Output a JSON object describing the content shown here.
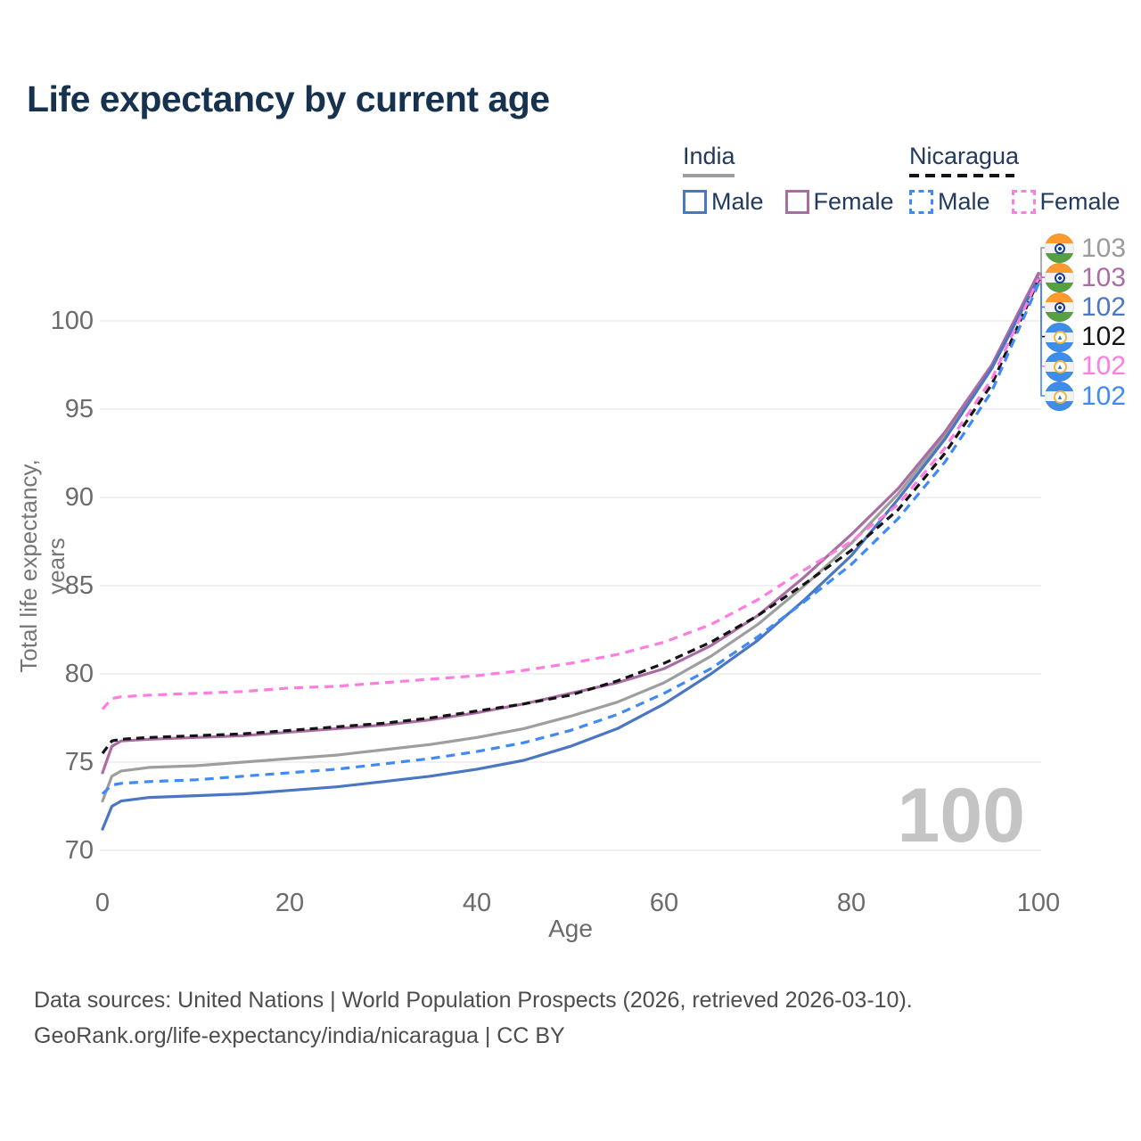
{
  "title": "Life expectancy by current age",
  "legend": {
    "groups": [
      {
        "label": "India",
        "line_style": "solid",
        "line_color": "#9e9e9e",
        "items": [
          {
            "label": "Male",
            "color": "#4a76c2",
            "dashed": false
          },
          {
            "label": "Female",
            "color": "#aa6da3",
            "dashed": false
          }
        ]
      },
      {
        "label": "Nicaragua",
        "line_style": "dashed",
        "line_color": "#141414",
        "items": [
          {
            "label": "Male",
            "color": "#3f8af5",
            "dashed": true
          },
          {
            "label": "Female",
            "color": "#ff7ce0",
            "dashed": true
          }
        ]
      }
    ]
  },
  "end_labels": [
    {
      "country": "India",
      "series": "India",
      "value": "103",
      "color": "#9a9a9a"
    },
    {
      "country": "India",
      "series": "India Female",
      "value": "103",
      "color": "#aa6da3"
    },
    {
      "country": "India",
      "series": "India Male",
      "value": "102",
      "color": "#4a76c2"
    },
    {
      "country": "Nicaragua",
      "series": "Nicaragua",
      "value": "102",
      "color": "#141414"
    },
    {
      "country": "Nicaragua",
      "series": "Nicaragua Female",
      "value": "102",
      "color": "#ff7ce0"
    },
    {
      "country": "Nicaragua",
      "series": "Nicaragua Male",
      "value": "102",
      "color": "#3f8af5"
    }
  ],
  "watermark": "100",
  "footer": {
    "line1": "Data sources: United Nations | World Population Prospects (2026, retrieved 2026-03-10).",
    "line2": "GeoRank.org/life-expectancy/india/nicaragua | CC BY"
  },
  "chart_data": {
    "type": "line",
    "title": "Life expectancy by current age",
    "xlabel": "Age",
    "ylabel": "Total life expectancy, years",
    "xlim": [
      0,
      100
    ],
    "ylim": [
      70,
      100
    ],
    "xticks": [
      0,
      20,
      40,
      60,
      80,
      100
    ],
    "yticks": [
      70,
      75,
      80,
      85,
      90,
      95,
      100
    ],
    "grid": "horizontal",
    "legend_position": "top-right",
    "x": [
      0,
      1,
      2,
      5,
      10,
      15,
      20,
      25,
      30,
      35,
      40,
      45,
      50,
      55,
      60,
      65,
      70,
      75,
      80,
      85,
      90,
      95,
      100
    ],
    "series": [
      {
        "name": "India",
        "color": "#9e9e9e",
        "dash": null,
        "values": [
          72.8,
          74.2,
          74.5,
          74.7,
          74.8,
          75.0,
          75.2,
          75.4,
          75.7,
          76.0,
          76.4,
          76.9,
          77.6,
          78.4,
          79.5,
          81.0,
          82.8,
          85.0,
          87.4,
          90.2,
          93.5,
          97.4,
          102.6
        ]
      },
      {
        "name": "India Female",
        "color": "#aa6da3",
        "dash": null,
        "values": [
          74.4,
          75.9,
          76.2,
          76.3,
          76.4,
          76.5,
          76.7,
          76.9,
          77.1,
          77.4,
          77.8,
          78.3,
          78.9,
          79.5,
          80.3,
          81.6,
          83.3,
          85.5,
          87.9,
          90.5,
          93.7,
          97.5,
          102.7
        ]
      },
      {
        "name": "India Male",
        "color": "#4a76c2",
        "dash": null,
        "values": [
          71.2,
          72.5,
          72.8,
          73.0,
          73.1,
          73.2,
          73.4,
          73.6,
          73.9,
          74.2,
          74.6,
          75.1,
          75.9,
          76.9,
          78.3,
          80.0,
          81.9,
          84.2,
          86.7,
          89.9,
          93.3,
          97.3,
          102.4
        ]
      },
      {
        "name": "Nicaragua",
        "color": "#141414",
        "dash": "9 6",
        "values": [
          75.5,
          76.2,
          76.3,
          76.4,
          76.5,
          76.6,
          76.8,
          77.0,
          77.2,
          77.5,
          77.9,
          78.3,
          78.8,
          79.6,
          80.6,
          81.8,
          83.3,
          85.1,
          87.0,
          89.3,
          92.5,
          96.4,
          102.3
        ]
      },
      {
        "name": "Nicaragua Female",
        "color": "#ff7ce0",
        "dash": "10 7",
        "values": [
          78.0,
          78.6,
          78.7,
          78.8,
          78.9,
          79.0,
          79.2,
          79.3,
          79.5,
          79.7,
          79.9,
          80.2,
          80.6,
          81.1,
          81.8,
          82.8,
          84.2,
          85.9,
          87.5,
          89.6,
          92.8,
          96.7,
          102.4
        ]
      },
      {
        "name": "Nicaragua Male",
        "color": "#3f8af5",
        "dash": "10 7",
        "values": [
          73.2,
          73.7,
          73.8,
          73.9,
          74.0,
          74.2,
          74.4,
          74.6,
          74.9,
          75.2,
          75.6,
          76.1,
          76.8,
          77.7,
          78.9,
          80.3,
          82.1,
          84.1,
          86.2,
          88.8,
          92.0,
          96.0,
          102.1
        ]
      }
    ]
  }
}
